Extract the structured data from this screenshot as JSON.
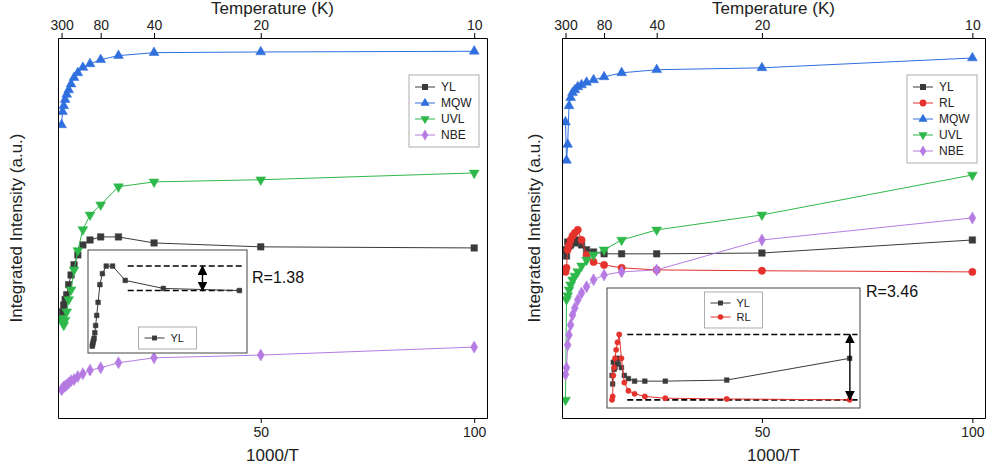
{
  "chart_data": [
    {
      "type": "line",
      "x_label": "1000/T",
      "y_label": "Integrated Intensity (a.u.)",
      "x2_label": "Temperature (K)",
      "x": [
        3.333,
        3.571,
        3.846,
        4.167,
        4.545,
        5,
        5.556,
        6.25,
        7.143,
        8.333,
        10,
        12.5,
        16.667,
        25,
        50,
        100
      ],
      "xlim": [
        2.5,
        103
      ],
      "xticks": [
        50,
        100
      ],
      "x2ticks": [
        {
          "value": 3.333,
          "label": "300"
        },
        {
          "value": 12.5,
          "label": "80"
        },
        {
          "value": 25,
          "label": "40"
        },
        {
          "value": 50,
          "label": "20"
        },
        {
          "value": 100,
          "label": "10"
        }
      ],
      "ylim": [
        10,
        740000
      ],
      "log": "y",
      "tick_labels": "x",
      "legend": "upper right",
      "line_style": "solid",
      "series": [
        {
          "name": "YL",
          "color": "#3a3a3a",
          "marker": "square",
          "values": [
            190,
            230,
            280,
            330,
            380,
            510,
            680,
            920,
            1230,
            1650,
            1910,
            2090,
            2090,
            1750,
            1560,
            1510
          ]
        },
        {
          "name": "MQW",
          "color": "#2f6fde",
          "marker": "triangle-up",
          "values": [
            57000,
            84000,
            100000,
            120000,
            140000,
            160000,
            190000,
            230000,
            265000,
            310000,
            345000,
            390000,
            440000,
            480000,
            490000,
            500000
          ]
        },
        {
          "name": "UVL",
          "color": "#2fb84a",
          "marker": "triangle-down",
          "values": [
            190,
            170,
            155,
            180,
            230,
            330,
            440,
            790,
            1400,
            2600,
            4000,
            5400,
            9200,
            10600,
            11300,
            13800
          ]
        },
        {
          "name": "NBE",
          "color": "#b57be3",
          "marker": "diamond",
          "values": [
            23,
            24,
            25,
            25.7,
            26.5,
            28,
            30,
            31,
            34,
            37,
            41,
            44,
            51,
            59,
            64,
            81
          ]
        }
      ],
      "inset": {
        "series_names": [
          "YL"
        ],
        "xlim": [
          2.5,
          103
        ],
        "ylim": [
          100,
          2400
        ],
        "log": false,
        "legend": "lower center",
        "ref_lines": [
          2090,
          1510
        ],
        "annotation": "R=1.38"
      }
    },
    {
      "type": "line",
      "x_label": "1000/T",
      "y_label": "Integrated Intensity (a.u.)",
      "x2_label": "Temperature (K)",
      "x": [
        3.333,
        3.571,
        3.846,
        4.167,
        4.545,
        5,
        5.556,
        6.25,
        7.143,
        8.333,
        10,
        12.5,
        16.667,
        25,
        50,
        100
      ],
      "xlim": [
        2.5,
        103
      ],
      "xticks": [
        50,
        100
      ],
      "x2ticks": [
        {
          "value": 3.333,
          "label": "300"
        },
        {
          "value": 12.5,
          "label": "80"
        },
        {
          "value": 25,
          "label": "40"
        },
        {
          "value": 50,
          "label": "20"
        },
        {
          "value": 100,
          "label": "10"
        }
      ],
      "ylim": [
        10,
        740000
      ],
      "log": "y",
      "tick_labels": "x",
      "legend": "upper right",
      "line_style": "solid",
      "series": [
        {
          "name": "YL",
          "color": "#3a3a3a",
          "marker": "square",
          "values": [
            1430,
            1190,
            1800,
            1600,
            1650,
            1910,
            1750,
            1910,
            1650,
            1430,
            1340,
            1270,
            1270,
            1270,
            1300,
            1910
          ]
        },
        {
          "name": "RL",
          "color": "#e5322d",
          "marker": "circle",
          "values": [
            745,
            840,
            1430,
            1650,
            1910,
            2150,
            2360,
            2580,
            1910,
            1230,
            1000,
            915,
            840,
            790,
            770,
            745
          ]
        },
        {
          "name": "MQW",
          "color": "#2f6fde",
          "marker": "triangle-up",
          "values": [
            62000,
            20000,
            32000,
            100000,
            127000,
            147000,
            160000,
            175000,
            185000,
            200000,
            215000,
            235000,
            265000,
            290000,
            307000,
            410000
          ]
        },
        {
          "name": "UVL",
          "color": "#2fb84a",
          "marker": "triangle-down",
          "values": [
            17,
            330,
            370,
            440,
            510,
            590,
            660,
            750,
            890,
            1060,
            1230,
            1430,
            1910,
            2570,
            4000,
            13000
          ]
        },
        {
          "name": "NBE",
          "color": "#b57be3",
          "marker": "diamond",
          "values": [
            36,
            44,
            86,
            116,
            156,
            209,
            257,
            326,
            400,
            480,
            590,
            680,
            745,
            790,
            1910,
            3660
          ]
        }
      ],
      "inset": {
        "series_names": [
          "YL",
          "RL"
        ],
        "xlim": [
          2.5,
          103
        ],
        "ylim": [
          600,
          3800
        ],
        "log": false,
        "legend": "upper center",
        "ref_lines": [
          2580,
          745
        ],
        "annotation": "R=3.46"
      }
    }
  ]
}
